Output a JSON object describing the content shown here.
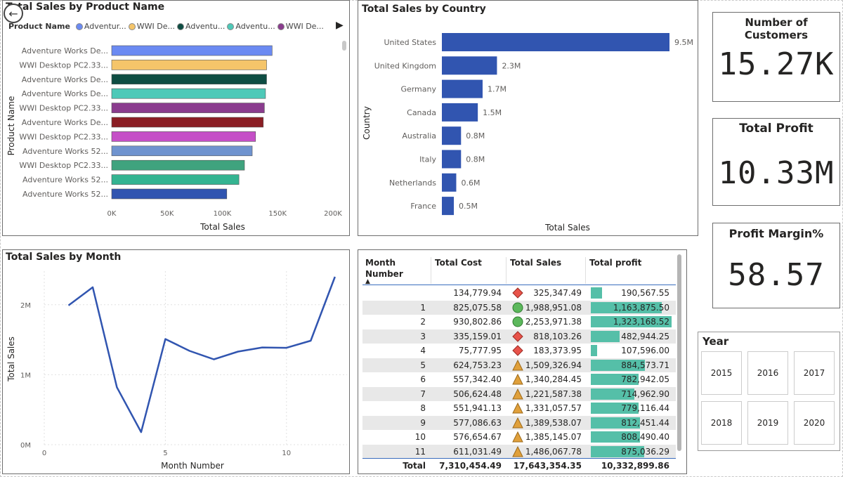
{
  "colors": {
    "bar_blue": "#3155b0",
    "teal": "#55bfa8",
    "line": "#3155b0"
  },
  "back_button": {
    "icon": "back-arrow-icon",
    "glyph": "←"
  },
  "product_chart": {
    "title": "Total Sales by Product Name",
    "legend_title": "Product Name",
    "legend_items": [
      {
        "label": "Adventur...",
        "color": "#6b8af2"
      },
      {
        "label": "WWI De...",
        "color": "#f5c56a"
      },
      {
        "label": "Adventu...",
        "color": "#0e4d43"
      },
      {
        "label": "Adventu...",
        "color": "#4ec9b8"
      },
      {
        "label": "WWI De...",
        "color": "#8a3c8e"
      }
    ],
    "more_arrow": "▶"
  },
  "country_chart": {
    "title": "Total Sales by Country"
  },
  "month_chart": {
    "title": "Total Sales by Month"
  },
  "chart_data": [
    {
      "type": "bar",
      "orientation": "horizontal",
      "title": "Total Sales by Product Name",
      "xlabel": "Total Sales",
      "ylabel": "Product Name",
      "categories": [
        "Adventure Works De...",
        "WWI Desktop PC2.33...",
        "Adventure Works De...",
        "Adventure Works De...",
        "WWI Desktop PC2.33...",
        "Adventure Works De...",
        "WWI Desktop PC2.33...",
        "Adventure Works 52...",
        "WWI Desktop PC2.33...",
        "Adventure Works 52...",
        "Adventure Works 52..."
      ],
      "values": [
        145000,
        140000,
        140000,
        139000,
        138000,
        137000,
        130000,
        127000,
        120000,
        115000,
        104000
      ],
      "colors": [
        "#6b8af2",
        "#f5c56a",
        "#0e4d43",
        "#4ec9b8",
        "#8a3c8e",
        "#8b1e24",
        "#c54fc7",
        "#6f93cf",
        "#3fa37e",
        "#34b491",
        "#3155b0"
      ],
      "xlim": [
        0,
        200000
      ],
      "xticks": [
        "0K",
        "50K",
        "100K",
        "150K",
        "200K"
      ]
    },
    {
      "type": "bar",
      "orientation": "horizontal",
      "title": "Total Sales by Country",
      "xlabel": "Total Sales",
      "ylabel": "Country",
      "categories": [
        "United States",
        "United Kingdom",
        "Germany",
        "Canada",
        "Australia",
        "Italy",
        "Netherlands",
        "France"
      ],
      "values": [
        9.5,
        2.3,
        1.7,
        1.5,
        0.8,
        0.8,
        0.6,
        0.5
      ],
      "labels": [
        "9.5M",
        "2.3M",
        "1.7M",
        "1.5M",
        "0.8M",
        "0.8M",
        "0.6M",
        "0.5M"
      ],
      "units": "M"
    },
    {
      "type": "line",
      "title": "Total Sales by Month",
      "xlabel": "Month Number",
      "ylabel": "Total Sales",
      "x": [
        1,
        2,
        3,
        4,
        5,
        6,
        7,
        8,
        9,
        10,
        11,
        12
      ],
      "y": [
        1.99,
        2.25,
        0.82,
        0.18,
        1.51,
        1.34,
        1.22,
        1.33,
        1.39,
        1.385,
        1.486,
        2.4
      ],
      "xlim": [
        0,
        12.5
      ],
      "ylim": [
        0,
        2.5
      ],
      "xticks": [
        "0",
        "5",
        "10"
      ],
      "yticks": [
        "0M",
        "1M",
        "2M"
      ],
      "units": "M"
    }
  ],
  "kpis": [
    {
      "title": "Number of Customers",
      "value": "15.27K"
    },
    {
      "title": "Total Profit",
      "value": "10.33M"
    },
    {
      "title": "Profit Margin%",
      "value": "58.57"
    }
  ],
  "year_slicer": {
    "title": "Year",
    "years": [
      "2015",
      "2016",
      "2017",
      "2018",
      "2019",
      "2020"
    ]
  },
  "table": {
    "headers": [
      "Month Number",
      "Total Cost",
      "Total Sales",
      "Total profit"
    ],
    "sort_indicator": "▲",
    "rows": [
      {
        "month": "",
        "cost": "134,779.94",
        "sales": "325,347.49",
        "icon": "diamond",
        "profit": "190,567.55",
        "profit_fraction": 0.14
      },
      {
        "month": "1",
        "cost": "825,075.58",
        "sales": "1,988,951.08",
        "icon": "circle",
        "profit": "1,163,875.50",
        "profit_fraction": 0.88
      },
      {
        "month": "2",
        "cost": "930,802.86",
        "sales": "2,253,971.38",
        "icon": "circle",
        "profit": "1,323,168.52",
        "profit_fraction": 1.0
      },
      {
        "month": "3",
        "cost": "335,159.01",
        "sales": "818,103.26",
        "icon": "diamond",
        "profit": "482,944.25",
        "profit_fraction": 0.36
      },
      {
        "month": "4",
        "cost": "75,777.95",
        "sales": "183,373.95",
        "icon": "diamond",
        "profit": "107,596.00",
        "profit_fraction": 0.08
      },
      {
        "month": "5",
        "cost": "624,753.23",
        "sales": "1,509,326.94",
        "icon": "triangle",
        "profit": "884,573.71",
        "profit_fraction": 0.67
      },
      {
        "month": "6",
        "cost": "557,342.40",
        "sales": "1,340,284.45",
        "icon": "triangle",
        "profit": "782,942.05",
        "profit_fraction": 0.59
      },
      {
        "month": "7",
        "cost": "506,624.48",
        "sales": "1,221,587.38",
        "icon": "triangle",
        "profit": "714,962.90",
        "profit_fraction": 0.54
      },
      {
        "month": "8",
        "cost": "551,941.13",
        "sales": "1,331,057.57",
        "icon": "triangle",
        "profit": "779,116.44",
        "profit_fraction": 0.59
      },
      {
        "month": "9",
        "cost": "577,086.63",
        "sales": "1,389,538.07",
        "icon": "triangle",
        "profit": "812,451.44",
        "profit_fraction": 0.61
      },
      {
        "month": "10",
        "cost": "576,654.67",
        "sales": "1,385,145.07",
        "icon": "triangle",
        "profit": "808,490.40",
        "profit_fraction": 0.61
      },
      {
        "month": "11",
        "cost": "611,031.49",
        "sales": "1,486,067.78",
        "icon": "triangle",
        "profit": "875,036.29",
        "profit_fraction": 0.66
      }
    ],
    "total": {
      "label": "Total",
      "cost": "7,310,454.49",
      "sales": "17,643,354.35",
      "profit": "10,332,899.86"
    }
  }
}
